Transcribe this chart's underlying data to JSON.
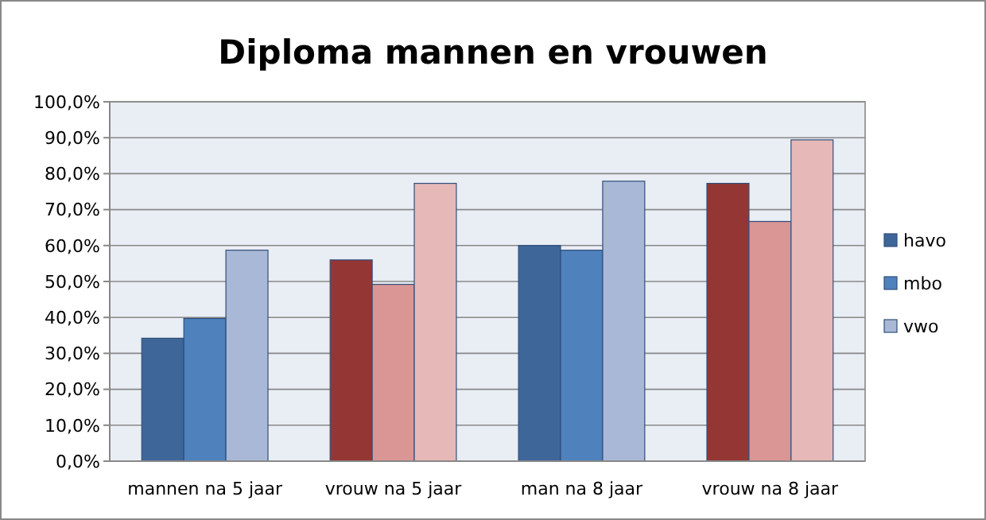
{
  "chart_data": {
    "type": "bar",
    "title": "Diploma mannen en vrouwen",
    "categories": [
      "mannen na 5 jaar",
      "vrouw na 5 jaar",
      "man na 8 jaar",
      "vrouw na 8 jaar"
    ],
    "series": [
      {
        "name": "havo",
        "color": "#3e6699",
        "colors": [
          "#3e6699",
          "#943634",
          "#3e6699",
          "#943634"
        ],
        "values": [
          34.2,
          56,
          60,
          77.3
        ]
      },
      {
        "name": "mbo",
        "color": "#4f81bd",
        "colors": [
          "#4f81bd",
          "#d99694",
          "#4f81bd",
          "#d99694"
        ],
        "values": [
          39.7,
          49.2,
          58.7,
          66.7
        ]
      },
      {
        "name": "vwo",
        "color": "#a9b8d6",
        "colors": [
          "#a9b8d6",
          "#e6b9b8",
          "#a9b8d6",
          "#e6b9b8"
        ],
        "values": [
          58.7,
          77.3,
          77.9,
          89.4
        ]
      }
    ],
    "ylim": [
      0,
      100
    ],
    "yticks": [
      {
        "value": 0,
        "label": "0,0%"
      },
      {
        "value": 10,
        "label": "10,0%"
      },
      {
        "value": 20,
        "label": "20,0%"
      },
      {
        "value": 30,
        "label": "30,0%"
      },
      {
        "value": 40,
        "label": "40,0%"
      },
      {
        "value": 50,
        "label": "50,0%"
      },
      {
        "value": 60,
        "label": "60,0%"
      },
      {
        "value": 70,
        "label": "70,0%"
      },
      {
        "value": 80,
        "label": "80,0%"
      },
      {
        "value": 90,
        "label": "90,0%"
      },
      {
        "value": 100,
        "label": "100,0%"
      }
    ],
    "grid": "y",
    "legend": "right"
  }
}
